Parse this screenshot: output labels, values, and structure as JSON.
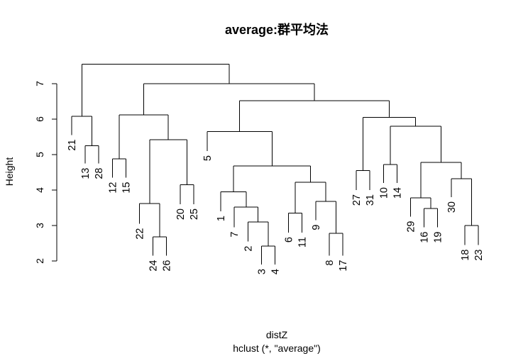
{
  "chart_data": {
    "type": "dendrogram",
    "title": "average:群平均法",
    "xlabel": "distZ",
    "sublabel": "hclust (*, \"average\")",
    "ylabel": "Height",
    "ylim": [
      2,
      7.5
    ],
    "yticks": [
      2,
      3,
      4,
      5,
      6,
      7
    ],
    "leaves": [
      {
        "label": "21",
        "height": 5.55
      },
      {
        "label": "13",
        "height": 4.75
      },
      {
        "label": "28",
        "height": 4.75
      },
      {
        "label": "12",
        "height": 4.35
      },
      {
        "label": "15",
        "height": 4.35
      },
      {
        "label": "22",
        "height": 3.05
      },
      {
        "label": "24",
        "height": 2.15
      },
      {
        "label": "26",
        "height": 2.15
      },
      {
        "label": "20",
        "height": 3.6
      },
      {
        "label": "25",
        "height": 3.6
      },
      {
        "label": "5",
        "height": 5.1
      },
      {
        "label": "1",
        "height": 3.4
      },
      {
        "label": "7",
        "height": 2.95
      },
      {
        "label": "2",
        "height": 2.55
      },
      {
        "label": "3",
        "height": 1.9
      },
      {
        "label": "4",
        "height": 1.9
      },
      {
        "label": "6",
        "height": 2.8
      },
      {
        "label": "11",
        "height": 2.8
      },
      {
        "label": "9",
        "height": 3.15
      },
      {
        "label": "8",
        "height": 2.15
      },
      {
        "label": "17",
        "height": 2.15
      },
      {
        "label": "27",
        "height": 4.0
      },
      {
        "label": "31",
        "height": 4.0
      },
      {
        "label": "10",
        "height": 4.2
      },
      {
        "label": "14",
        "height": 4.2
      },
      {
        "label": "29",
        "height": 3.25
      },
      {
        "label": "16",
        "height": 2.95
      },
      {
        "label": "19",
        "height": 2.95
      },
      {
        "label": "30",
        "height": 3.8
      },
      {
        "label": "18",
        "height": 2.45
      },
      {
        "label": "23",
        "height": 2.45
      }
    ],
    "merges": [
      {
        "left": "13",
        "right": "28",
        "height": 5.25
      },
      {
        "left": "21",
        "right": "13+28",
        "height": 6.08
      },
      {
        "left": "12",
        "right": "15",
        "height": 4.88
      },
      {
        "left": "24",
        "right": "26",
        "height": 2.68
      },
      {
        "left": "22",
        "right": "24+26",
        "height": 3.62
      },
      {
        "left": "20",
        "right": "25",
        "height": 4.15
      },
      {
        "left": "22+24+26",
        "right": "20+25",
        "height": 5.42
      },
      {
        "left": "12+15",
        "right": "22..25",
        "height": 6.12
      },
      {
        "left": "3",
        "right": "4",
        "height": 2.42
      },
      {
        "left": "2",
        "right": "3+4",
        "height": 3.1
      },
      {
        "left": "7",
        "right": "2+3+4",
        "height": 3.52
      },
      {
        "left": "1",
        "right": "7+2+3+4",
        "height": 3.95
      },
      {
        "left": "6",
        "right": "11",
        "height": 3.35
      },
      {
        "left": "8",
        "right": "17",
        "height": 2.78
      },
      {
        "left": "9",
        "right": "8+17",
        "height": 3.68
      },
      {
        "left": "6+11",
        "right": "9+8+17",
        "height": 4.22
      },
      {
        "left": "1..4",
        "right": "6..17",
        "height": 4.68
      },
      {
        "left": "5",
        "right": "1..17",
        "height": 5.65
      },
      {
        "left": "27",
        "right": "31",
        "height": 4.55
      },
      {
        "left": "10",
        "right": "14",
        "height": 4.72
      },
      {
        "left": "16",
        "right": "19",
        "height": 3.48
      },
      {
        "left": "29",
        "right": "16+19",
        "height": 3.78
      },
      {
        "left": "18",
        "right": "23",
        "height": 3.0
      },
      {
        "left": "30",
        "right": "18+23",
        "height": 4.32
      },
      {
        "left": "29+16+19",
        "right": "30+18+23",
        "height": 4.78
      },
      {
        "left": "10+14",
        "right": "29..23",
        "height": 5.8
      },
      {
        "left": "27+31",
        "right": "10..23",
        "height": 6.05
      },
      {
        "left": "5..17",
        "right": "27..23",
        "height": 6.52
      },
      {
        "left": "12..25",
        "right": "5..23",
        "height": 7.0
      },
      {
        "left": "21+13+28",
        "right": "12..23",
        "height": 7.55
      }
    ]
  }
}
